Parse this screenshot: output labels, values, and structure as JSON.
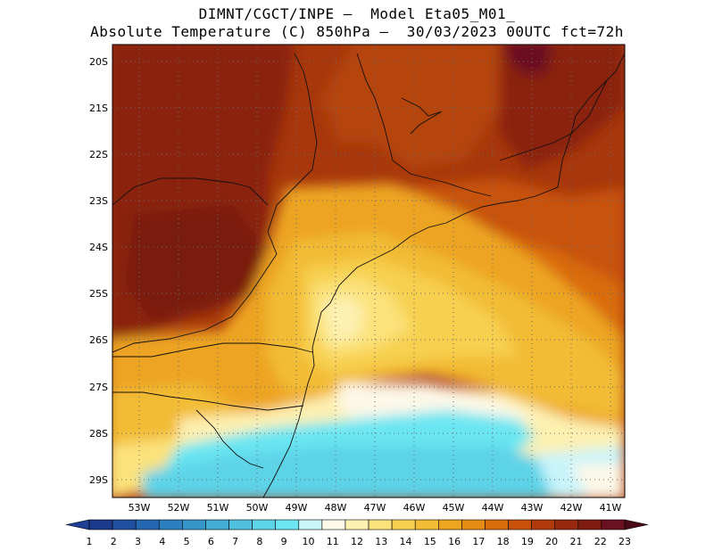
{
  "title_line1": "DIMNT/CGCT/INPE –  Model Eta05_M01_",
  "title_line2": "Absolute Temperature (C) 850hPa –  30/03/2023 00UTC fct=72h",
  "lat_labels": [
    "20S",
    "21S",
    "22S",
    "23S",
    "24S",
    "25S",
    "26S",
    "27S",
    "28S",
    "29S"
  ],
  "lon_labels": [
    "53W",
    "52W",
    "51W",
    "50W",
    "49W",
    "48W",
    "47W",
    "46W",
    "45W",
    "44W",
    "43W",
    "42W",
    "41W"
  ],
  "colorbar": {
    "labels": [
      "1",
      "2",
      "3",
      "4",
      "5",
      "6",
      "7",
      "8",
      "9",
      "10",
      "11",
      "12",
      "13",
      "14",
      "15",
      "16",
      "17",
      "18",
      "19",
      "20",
      "21",
      "22",
      "23"
    ],
    "colors": [
      "#1b3a8c",
      "#1f4f9e",
      "#2466af",
      "#2b7fbf",
      "#3597c9",
      "#42acd3",
      "#4fc0dd",
      "#5dd3e8",
      "#6be6f2",
      "#c8f4fa",
      "#fdf8e8",
      "#fdf0b0",
      "#fbe27a",
      "#f7d050",
      "#f2bc34",
      "#eda421",
      "#e58a12",
      "#d96c0a",
      "#c85208",
      "#b03a0b",
      "#98290f",
      "#7e1c10",
      "#6a1020"
    ],
    "low_end": "#1f3f95",
    "high_end": "#4a0a18"
  }
}
